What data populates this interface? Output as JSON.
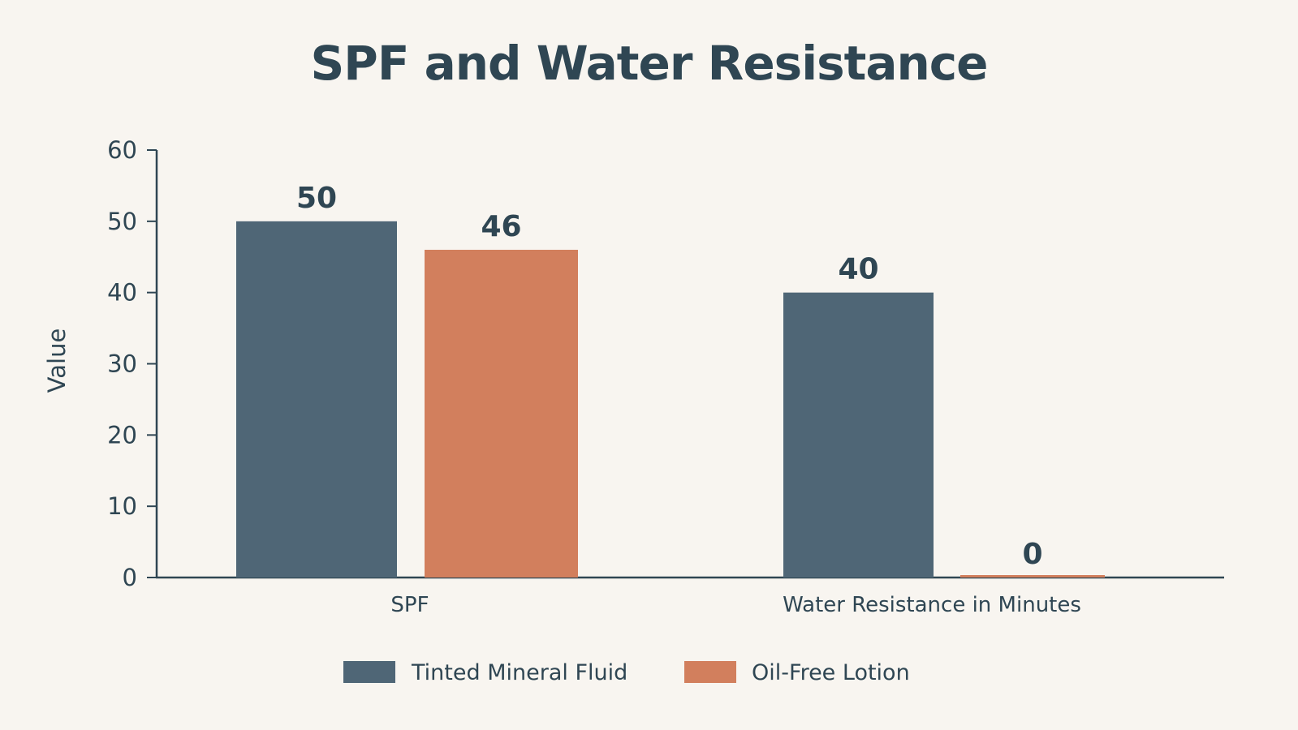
{
  "chart_data": {
    "type": "bar",
    "title": "SPF and Water Resistance",
    "xlabel": "",
    "ylabel": "Value",
    "ylim": [
      0,
      60
    ],
    "yticks": [
      0,
      10,
      20,
      30,
      40,
      50,
      60
    ],
    "categories": [
      "SPF",
      "Water Resistance in Minutes"
    ],
    "series": [
      {
        "name": "Tinted Mineral Fluid",
        "values": [
          50,
          40
        ],
        "color": "#4f6676"
      },
      {
        "name": "Oil-Free Lotion",
        "values": [
          46,
          0
        ],
        "color": "#d27f5d"
      }
    ],
    "data_labels": true,
    "grid": false,
    "legend_position": "bottom-center",
    "axis_color": "#2f4653",
    "text_color": "#2f4653",
    "background": "#f8f5f0"
  }
}
